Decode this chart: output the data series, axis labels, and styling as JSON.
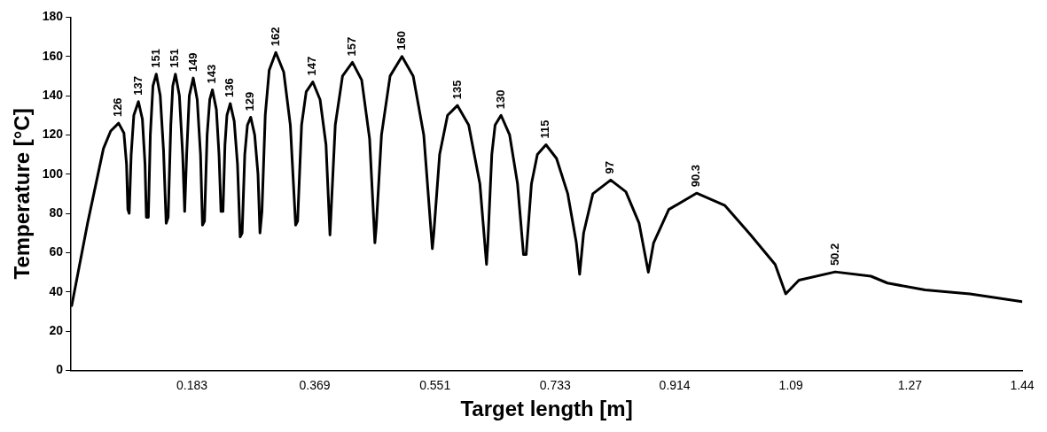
{
  "chart_data": {
    "type": "line",
    "xlabel": "Target length [m]",
    "ylabel": "Temperature [°C]",
    "xlim": [
      0,
      1.44
    ],
    "xticks": [
      0.183,
      0.369,
      0.551,
      0.733,
      0.914,
      1.09,
      1.27,
      1.44
    ],
    "ylim": [
      0,
      180
    ],
    "yticks": [
      0,
      20,
      40,
      60,
      80,
      100,
      120,
      140,
      160,
      180
    ],
    "grid": false,
    "legend": false,
    "marker": "none",
    "line_style": "solid",
    "series": [
      {
        "color": "#000000",
        "x": [
          0.001,
          0.025,
          0.049,
          0.06,
          0.072,
          0.08,
          0.084,
          0.086,
          0.088,
          0.091,
          0.095,
          0.102,
          0.108,
          0.112,
          0.114,
          0.117,
          0.12,
          0.124,
          0.129,
          0.135,
          0.14,
          0.144,
          0.147,
          0.151,
          0.154,
          0.158,
          0.164,
          0.169,
          0.172,
          0.175,
          0.179,
          0.185,
          0.191,
          0.196,
          0.199,
          0.202,
          0.206,
          0.21,
          0.214,
          0.22,
          0.224,
          0.227,
          0.23,
          0.233,
          0.236,
          0.241,
          0.247,
          0.252,
          0.256,
          0.259,
          0.263,
          0.267,
          0.272,
          0.278,
          0.283,
          0.286,
          0.289,
          0.294,
          0.3,
          0.31,
          0.322,
          0.332,
          0.34,
          0.343,
          0.349,
          0.356,
          0.366,
          0.377,
          0.386,
          0.392,
          0.394,
          0.4,
          0.411,
          0.426,
          0.44,
          0.452,
          0.46,
          0.462,
          0.47,
          0.483,
          0.501,
          0.518,
          0.534,
          0.547,
          0.549,
          0.558,
          0.57,
          0.585,
          0.602,
          0.619,
          0.629,
          0.631,
          0.637,
          0.642,
          0.651,
          0.664,
          0.676,
          0.685,
          0.689,
          0.697,
          0.706,
          0.719,
          0.735,
          0.752,
          0.765,
          0.77,
          0.776,
          0.79,
          0.817,
          0.84,
          0.86,
          0.874,
          0.882,
          0.905,
          0.947,
          0.99,
          1.029,
          1.066,
          1.082,
          1.102,
          1.157,
          1.211,
          1.236,
          1.293,
          1.361,
          1.44
        ],
        "values": [
          33,
          75,
          113,
          122,
          126,
          121,
          105,
          82,
          80,
          110,
          130,
          137,
          128,
          105,
          78,
          78,
          120,
          145,
          151,
          140,
          112,
          75,
          78,
          125,
          145,
          151,
          140,
          110,
          81,
          110,
          140,
          149,
          138,
          110,
          74,
          76,
          120,
          138,
          143,
          133,
          110,
          81,
          81,
          115,
          130,
          136,
          127,
          105,
          68,
          70,
          110,
          125,
          129,
          120,
          100,
          70,
          81,
          130,
          153,
          162,
          152,
          125,
          74,
          76,
          125,
          142,
          147,
          138,
          115,
          69,
          83,
          125,
          150,
          157,
          148,
          118,
          65,
          73,
          120,
          150,
          160,
          150,
          120,
          62,
          69,
          110,
          130,
          135,
          125,
          95,
          54,
          65,
          110,
          125,
          130,
          120,
          95,
          59,
          59,
          95,
          110,
          115,
          108,
          90,
          65,
          49,
          70,
          90,
          97,
          91,
          75,
          50,
          65,
          82,
          90.3,
          84,
          69,
          54,
          39,
          46,
          50.2,
          48,
          44.5,
          41,
          39,
          35
        ],
        "value_labels": [
          null,
          null,
          null,
          null,
          "126",
          null,
          null,
          null,
          null,
          null,
          null,
          "137",
          null,
          null,
          null,
          null,
          null,
          null,
          "151",
          null,
          null,
          null,
          null,
          null,
          null,
          "151",
          null,
          null,
          null,
          null,
          null,
          "149",
          null,
          null,
          null,
          null,
          null,
          null,
          "143",
          null,
          null,
          null,
          null,
          null,
          null,
          "136",
          null,
          null,
          null,
          null,
          null,
          null,
          "129",
          null,
          null,
          null,
          null,
          null,
          null,
          "162",
          null,
          null,
          null,
          null,
          null,
          null,
          "147",
          null,
          null,
          null,
          null,
          null,
          null,
          "157",
          null,
          null,
          null,
          null,
          null,
          null,
          "160",
          null,
          null,
          null,
          null,
          null,
          null,
          "135",
          null,
          null,
          null,
          null,
          null,
          null,
          "130",
          null,
          null,
          null,
          null,
          null,
          null,
          "115",
          null,
          null,
          null,
          null,
          null,
          null,
          "97",
          null,
          null,
          null,
          null,
          null,
          "90.3",
          null,
          null,
          null,
          null,
          null,
          "50.2",
          null,
          null,
          null,
          null,
          null
        ]
      }
    ]
  }
}
